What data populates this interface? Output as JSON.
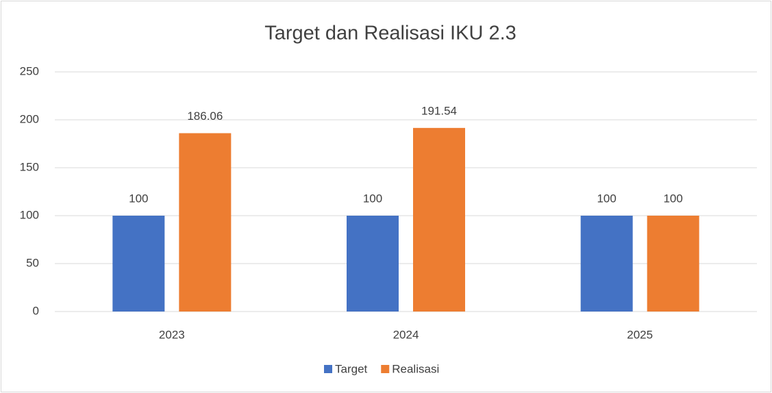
{
  "chart_data": {
    "type": "bar",
    "title": "Target dan Realisasi IKU 2.3",
    "categories": [
      "2023",
      "2024",
      "2025"
    ],
    "series": [
      {
        "name": "Target",
        "color": "#4472c4",
        "values": [
          100,
          100,
          100
        ]
      },
      {
        "name": "Realisasi",
        "color": "#ed7d31",
        "values": [
          186.06,
          191.54,
          100
        ]
      }
    ],
    "ylim": [
      0,
      250
    ],
    "yticks": [
      0,
      50,
      100,
      150,
      200,
      250
    ],
    "grid": true,
    "legend": "bottom"
  }
}
